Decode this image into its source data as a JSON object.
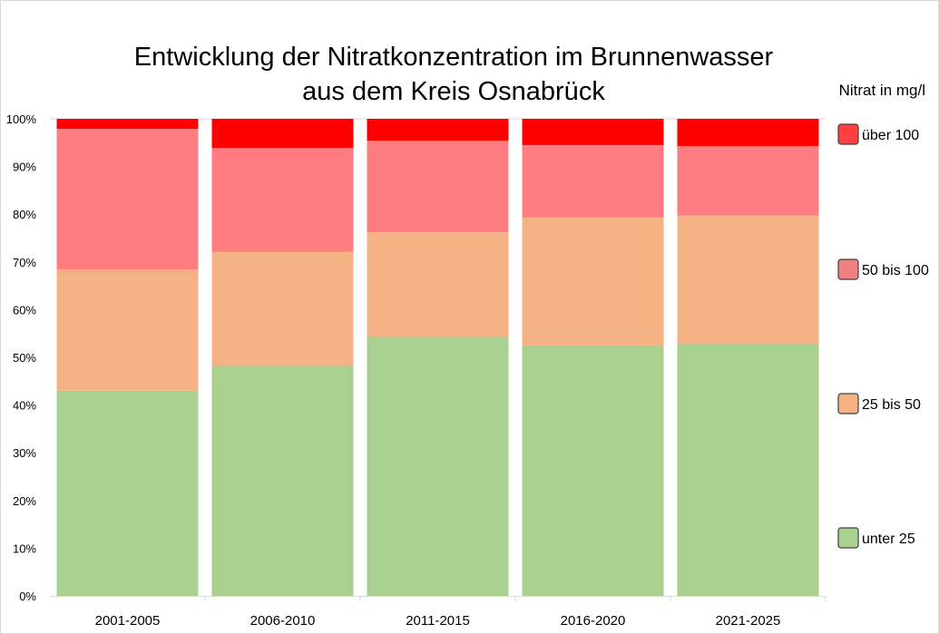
{
  "chart_data": {
    "type": "bar",
    "stacked": true,
    "title_line1": "Entwicklung der Nitratkonzentration im Brunnenwasser",
    "title_line2": "aus dem Kreis Osnabrück",
    "legend_title": "Nitrat in mg/l",
    "legend_placement": "right",
    "categories": [
      "2001-2005",
      "2006-2010",
      "2011-2015",
      "2016-2020",
      "2021-2025"
    ],
    "ylim": [
      0,
      100
    ],
    "yticks": [
      "0%",
      "10%",
      "20%",
      "30%",
      "40%",
      "50%",
      "60%",
      "70%",
      "80%",
      "90%",
      "100%"
    ],
    "series": [
      {
        "name": "unter 25",
        "color": "#a9d08e",
        "legend_color": "#a9d08e",
        "values": [
          43.0,
          48.3,
          54.4,
          52.5,
          52.9
        ]
      },
      {
        "name": "25 bis 50",
        "color": "#f4b183",
        "legend_color": "#f4b183",
        "values": [
          25.4,
          23.8,
          21.8,
          26.8,
          26.8
        ]
      },
      {
        "name": "50 bis 100",
        "color": "#ff7c80",
        "legend_color": "#f08080",
        "values": [
          29.5,
          21.8,
          19.2,
          15.2,
          14.6
        ]
      },
      {
        "name": "über 100",
        "color": "#ff0000",
        "legend_color": "#ff4040",
        "values": [
          2.1,
          6.1,
          4.6,
          5.5,
          5.7
        ]
      }
    ]
  }
}
